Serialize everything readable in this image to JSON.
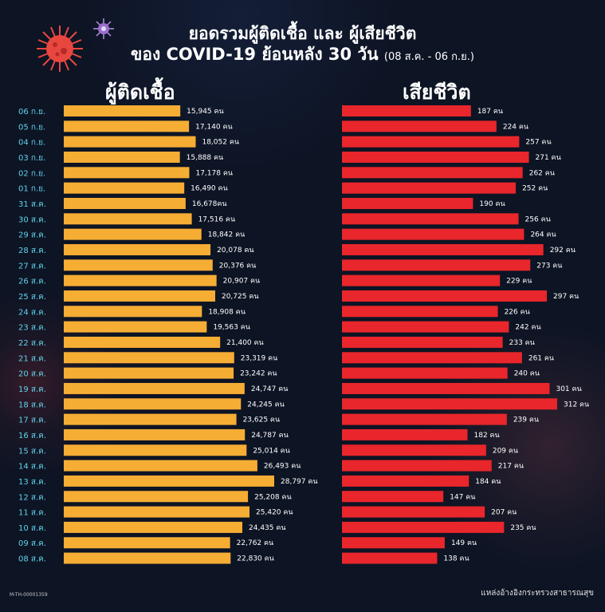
{
  "header": {
    "title_line1": "ยอดรวมผู้ติดเชื้อ และ ผู้เสียชีวิต",
    "title_line2": "ของ COVID-19 ย้อนหลัง 30 วัน",
    "title_sub": "(08 ส.ค. - 06 ก.ย.)"
  },
  "footer": {
    "code": "M-TH-00001359",
    "source": "แหล่งอ้างอิงกระทรวงสาธารณสุข"
  },
  "colors": {
    "infected_bar": "#f5ad34",
    "deaths_bar": "#e8262b",
    "date_label": "#5fd3ea",
    "background": "#0d1424"
  },
  "icons": [
    "virus-icon-red",
    "virus-icon-purple"
  ],
  "chart_data": [
    {
      "type": "bar",
      "orientation": "horizontal",
      "title": "ผู้ติดเชื้อ",
      "unit": "คน",
      "categories": [
        "06 ก.ย.",
        "05 ก.ย.",
        "04 ก.ย.",
        "03 ก.ย.",
        "02 ก.ย.",
        "01 ก.ย.",
        "31 ส.ค.",
        "30 ส.ค.",
        "29 ส.ค.",
        "28 ส.ค.",
        "27 ส.ค.",
        "26 ส.ค.",
        "25 ส.ค.",
        "24 ส.ค.",
        "23 ส.ค.",
        "22 ส.ค.",
        "21 ส.ค.",
        "20 ส.ค.",
        "19 ส.ค.",
        "18 ส.ค.",
        "17 ส.ค.",
        "16 ส.ค.",
        "15 ส.ค.",
        "14 ส.ค.",
        "13 ส.ค.",
        "12 ส.ค.",
        "11 ส.ค.",
        "10 ส.ค.",
        "09 ส.ค.",
        "08 ส.ค."
      ],
      "values": [
        15945,
        17140,
        18052,
        15888,
        17178,
        16490,
        16678,
        17516,
        18842,
        20078,
        20376,
        20907,
        20725,
        18908,
        19563,
        21400,
        23319,
        23242,
        24747,
        24245,
        23625,
        24787,
        25014,
        26493,
        28797,
        25208,
        25420,
        24435,
        22762,
        22830
      ],
      "value_labels": [
        "15,945 คน",
        "17,140 คน",
        "18,052 คน",
        "15,888 คน",
        "17,178 คน",
        "16,490 คน",
        "16,678คน",
        "17,516 คน",
        "18,842 คน",
        "20,078 คน",
        "20,376 คน",
        "20,907 คน",
        "20,725 คน",
        "18,908 คน",
        "19,563 คน",
        "21,400 คน",
        "23,319 คน",
        "23,242 คน",
        "24,747 คน",
        "24,245 คน",
        "23,625 คน",
        "24,787 คน",
        "25,014 คน",
        "26,493 คน",
        "28,797 คน",
        "25,208 คน",
        "25,420 คน",
        "24,435 คน",
        "22,762 คน",
        "22,830 คน"
      ]
    },
    {
      "type": "bar",
      "orientation": "horizontal",
      "title": "เสียชีวิต",
      "unit": "คน",
      "categories": [
        "06 ก.ย.",
        "05 ก.ย.",
        "04 ก.ย.",
        "03 ก.ย.",
        "02 ก.ย.",
        "01 ก.ย.",
        "31 ส.ค.",
        "30 ส.ค.",
        "29 ส.ค.",
        "28 ส.ค.",
        "27 ส.ค.",
        "26 ส.ค.",
        "25 ส.ค.",
        "24 ส.ค.",
        "23 ส.ค.",
        "22 ส.ค.",
        "21 ส.ค.",
        "20 ส.ค.",
        "19 ส.ค.",
        "18 ส.ค.",
        "17 ส.ค.",
        "16 ส.ค.",
        "15 ส.ค.",
        "14 ส.ค.",
        "13 ส.ค.",
        "12 ส.ค.",
        "11 ส.ค.",
        "10 ส.ค.",
        "09 ส.ค.",
        "08 ส.ค."
      ],
      "values": [
        187,
        224,
        257,
        271,
        262,
        252,
        190,
        256,
        264,
        292,
        273,
        229,
        297,
        226,
        242,
        233,
        261,
        240,
        301,
        312,
        239,
        182,
        209,
        217,
        184,
        147,
        207,
        235,
        149,
        138
      ],
      "value_labels": [
        "187 คน",
        "224 คน",
        "257 คน",
        "271 คน",
        "262 คน",
        "252 คน",
        "190 คน",
        "256 คน",
        "264 คน",
        "292 คน",
        "273 คน",
        "229 คน",
        "297 คน",
        "226 คน",
        "242 คน",
        "233 คน",
        "261 คน",
        "240 คน",
        "301 คน",
        "312 คน",
        "239 คน",
        "182 คน",
        "209 คน",
        "217 คน",
        "184 คน",
        "147 คน",
        "207 คน",
        "235 คน",
        "149 คน",
        "138 คน"
      ]
    }
  ]
}
